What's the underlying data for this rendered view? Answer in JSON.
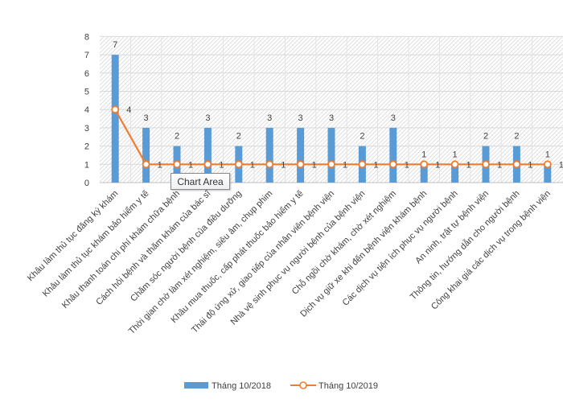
{
  "chart_data": {
    "type": "bar",
    "categories": [
      "Khâu làm thủ tục đăng ký khám",
      "Khâu làm thủ tục khám bảo hiểm y tế",
      "Khâu thanh toán chi phí khám chữa bệnh",
      "Cách hỏi bệnh và thăm khám của bác sĩ",
      "Chăm sóc người bệnh của điều dưỡng",
      "Thời gian chờ làm xét nghiệm, siêu âm, chụp phim",
      "Khâu mua thuốc, cấp phát thuốc bảo hiểm y tế",
      "Thái độ ứng xử, giao tiếp của nhân viên bệnh viện",
      "Nhà vệ sinh phục vụ người bệnh của bệnh viện",
      "Chỗ ngồi chờ khám, chờ xét nghiệm",
      "Dịch vụ giữ xe khi đến bệnh viện khám bệnh",
      "Các dịch vụ tiện ích phục vụ người bệnh",
      "An ninh, trật tự bệnh viện",
      "Thông tin, hướng dẫn cho người bệnh",
      "Công khai giá các dịch vụ trong bệnh viện"
    ],
    "series": [
      {
        "name": "Tháng 10/2018",
        "kind": "bar",
        "color": "#5b9bd5",
        "values": [
          7,
          3,
          2,
          3,
          2,
          3,
          3,
          3,
          2,
          3,
          1,
          1,
          2,
          2,
          1
        ]
      },
      {
        "name": "Tháng 10/2019",
        "kind": "line",
        "color": "#ed7d31",
        "values": [
          4,
          1,
          1,
          1,
          1,
          1,
          1,
          1,
          1,
          1,
          1,
          1,
          1,
          1,
          1
        ]
      }
    ],
    "ylim": [
      0,
      8
    ],
    "yticks": [
      "0",
      "1",
      "2",
      "3",
      "4",
      "5",
      "6",
      "7",
      "8"
    ],
    "grid": true,
    "legend": "bottom",
    "data_labels": true
  },
  "tooltip": {
    "label": "Chart Area"
  }
}
